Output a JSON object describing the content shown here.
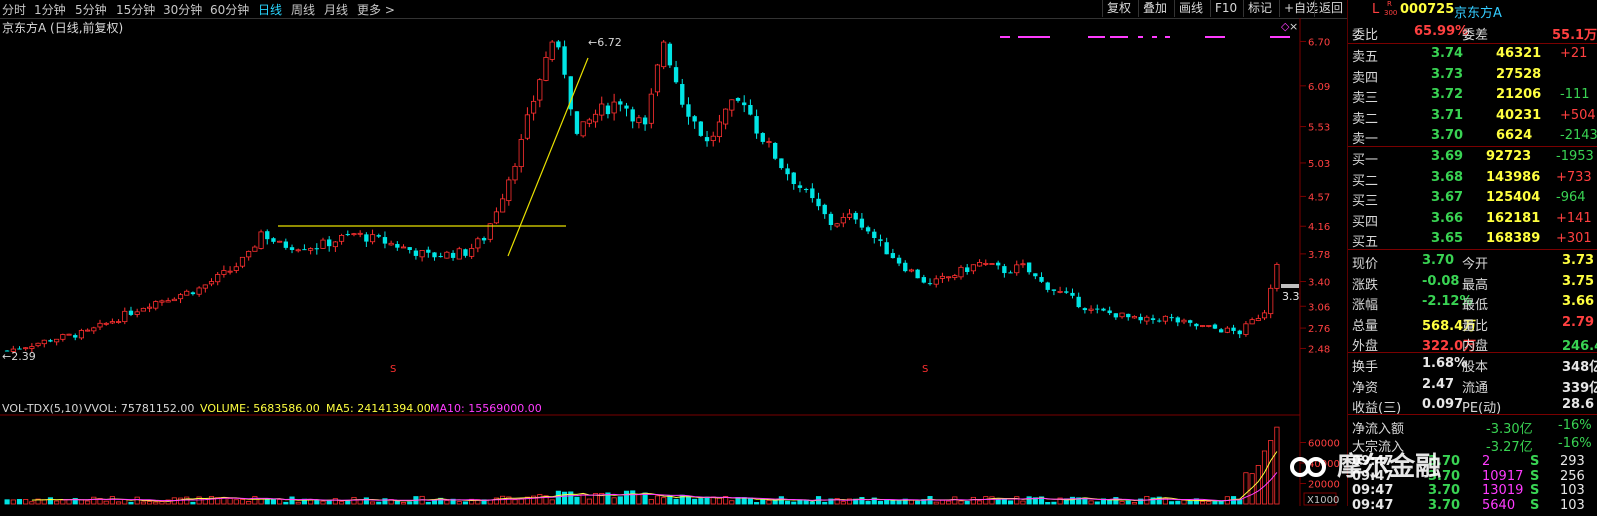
{
  "toolbar": {
    "periods": [
      "分时",
      "1分钟",
      "5分钟",
      "15分钟",
      "30分钟",
      "60分钟",
      "日线",
      "周线",
      "月线",
      "更多 >"
    ],
    "active_period": "日线",
    "buttons": [
      "复权",
      "叠加",
      "画线",
      "F10",
      "标记",
      "+自选",
      "返回"
    ],
    "close": "×"
  },
  "chart_header": {
    "title": "京东方A (日线,前复权)"
  },
  "annotations": {
    "high_label": "6.72",
    "low_label": "2.39",
    "current_tag": "3.3",
    "marker": "S"
  },
  "price_axis": {
    "ticks": [
      "6.70",
      "6.09",
      "5.53",
      "5.03",
      "4.57",
      "4.16",
      "3.78",
      "3.40",
      "3.06",
      "2.76",
      "2.48"
    ]
  },
  "vol_header": {
    "name": "VOL-TDX(5,10)",
    "vvol": "VVOL: 75781152.00",
    "volume": "VOLUME: 5683586.00",
    "ma5": "MA5: 24141394.00",
    "ma10": "MA10: 15569000.00"
  },
  "vol_axis": {
    "ticks": [
      "60000",
      "40000",
      "20000"
    ],
    "unit": "X1000"
  },
  "chart_data": {
    "type": "candlestick",
    "title": "京东方A (日线,前复权)",
    "approx_close_path": [
      [
        0,
        2.45
      ],
      [
        8,
        2.62
      ],
      [
        13,
        2.7
      ],
      [
        18,
        2.9
      ],
      [
        23,
        3.1
      ],
      [
        27,
        3.2
      ],
      [
        31,
        3.3
      ],
      [
        36,
        3.55
      ],
      [
        39,
        3.75
      ],
      [
        41,
        4.08
      ],
      [
        44,
        3.9
      ],
      [
        50,
        3.88
      ],
      [
        56,
        4.05
      ],
      [
        62,
        3.92
      ],
      [
        68,
        3.75
      ],
      [
        74,
        3.8
      ],
      [
        77,
        4.0
      ],
      [
        80,
        4.6
      ],
      [
        83,
        5.3
      ],
      [
        86,
        6.2
      ],
      [
        88,
        6.72
      ],
      [
        90,
        6.3
      ],
      [
        92,
        5.4
      ],
      [
        95,
        5.7
      ],
      [
        99,
        5.9
      ],
      [
        103,
        5.5
      ],
      [
        106,
        6.72
      ],
      [
        109,
        5.9
      ],
      [
        113,
        5.3
      ],
      [
        117,
        5.8
      ],
      [
        119,
        5.9
      ],
      [
        121,
        5.5
      ],
      [
        125,
        5.0
      ],
      [
        129,
        4.6
      ],
      [
        133,
        4.2
      ],
      [
        137,
        4.3
      ],
      [
        141,
        3.9
      ],
      [
        145,
        3.6
      ],
      [
        149,
        3.35
      ],
      [
        153,
        3.5
      ],
      [
        157,
        3.65
      ],
      [
        161,
        3.55
      ],
      [
        164,
        3.6
      ],
      [
        167,
        3.38
      ],
      [
        171,
        3.2
      ],
      [
        175,
        3.0
      ],
      [
        179,
        2.95
      ],
      [
        183,
        2.85
      ],
      [
        187,
        2.9
      ],
      [
        191,
        2.8
      ],
      [
        195,
        2.75
      ],
      [
        199,
        2.7
      ],
      [
        203,
        3.0
      ],
      [
        205,
        3.7
      ]
    ],
    "price_range": [
      2.39,
      6.72
    ],
    "yaxis_ticks": [
      6.7,
      6.09,
      5.53,
      5.03,
      4.57,
      4.16,
      3.78,
      3.4,
      3.06,
      2.76,
      2.48
    ],
    "volume": {
      "ylim": [
        0,
        80000
      ],
      "unit": "X1000",
      "last_volume_value": 5683586.0,
      "ma5": 24141394.0,
      "ma10": 15569000.0
    }
  },
  "quote": {
    "flag": "L",
    "tag_top": "R",
    "tag_bottom": "300",
    "code": "000725",
    "name": "京东方A",
    "weibi_label": "委比",
    "weibi": "65.99%",
    "weicha_label": "委差",
    "weicha": "55.1万",
    "asks": [
      {
        "label": "卖五",
        "price": "3.74",
        "vol": "46321",
        "chg": "+21"
      },
      {
        "label": "卖四",
        "price": "3.73",
        "vol": "27528",
        "chg": ""
      },
      {
        "label": "卖三",
        "price": "3.72",
        "vol": "21206",
        "chg": "-111"
      },
      {
        "label": "卖二",
        "price": "3.71",
        "vol": "40231",
        "chg": "+504"
      },
      {
        "label": "卖一",
        "price": "3.70",
        "vol": "6624",
        "chg": "-2143"
      }
    ],
    "bids": [
      {
        "label": "买一",
        "price": "3.69",
        "vol": "92723",
        "chg": "-1953"
      },
      {
        "label": "买二",
        "price": "3.68",
        "vol": "143986",
        "chg": "+733"
      },
      {
        "label": "买三",
        "price": "3.67",
        "vol": "125404",
        "chg": "-964"
      },
      {
        "label": "买四",
        "price": "3.66",
        "vol": "162181",
        "chg": "+141"
      },
      {
        "label": "买五",
        "price": "3.65",
        "vol": "168389",
        "chg": "+301"
      }
    ],
    "stats": [
      {
        "l1": "现价",
        "v1": "3.70",
        "c1": "g",
        "l2": "今开",
        "v2": "3.73",
        "c2": "y"
      },
      {
        "l1": "涨跌",
        "v1": "-0.08",
        "c1": "g",
        "l2": "最高",
        "v2": "3.75",
        "c2": "y"
      },
      {
        "l1": "涨幅",
        "v1": "-2.12%",
        "c1": "g",
        "l2": "最低",
        "v2": "3.66",
        "c2": "y"
      },
      {
        "l1": "总量",
        "v1": "568.4万",
        "c1": "y",
        "l2": "量比",
        "v2": "2.79",
        "c2": "r"
      },
      {
        "l1": "外盘",
        "v1": "322.0万",
        "c1": "r",
        "l2": "内盘",
        "v2": "246.4万",
        "c2": "g"
      }
    ],
    "fund": [
      {
        "l1": "换手",
        "v1": "1.68%",
        "l2": "股本",
        "v2": "348亿"
      },
      {
        "l1": "净资",
        "v1": "2.47",
        "l2": "流通",
        "v2": "339亿"
      },
      {
        "l1": "收益(三)",
        "v1": "0.097",
        "l2": "PE(动)",
        "v2": "28.6"
      }
    ],
    "flows": [
      {
        "label": "净流入额",
        "v": "-3.30亿",
        "p": "-16%"
      },
      {
        "label": "大宗流入",
        "v": "-3.27亿",
        "p": "-16%"
      }
    ],
    "ticks": [
      {
        "time": "09:47",
        "price": "3.70",
        "vol": "2",
        "s": "S",
        "n": "293"
      },
      {
        "time": "09:47",
        "price": "3.70",
        "vol": "10917",
        "s": "S",
        "n": "256"
      },
      {
        "time": "09:47",
        "price": "3.70",
        "vol": "13019",
        "s": "S",
        "n": "103"
      },
      {
        "time": "09:47",
        "price": "3.70",
        "vol": "5640",
        "s": "S",
        "n": "103"
      }
    ]
  },
  "watermark": "摩尔金融"
}
